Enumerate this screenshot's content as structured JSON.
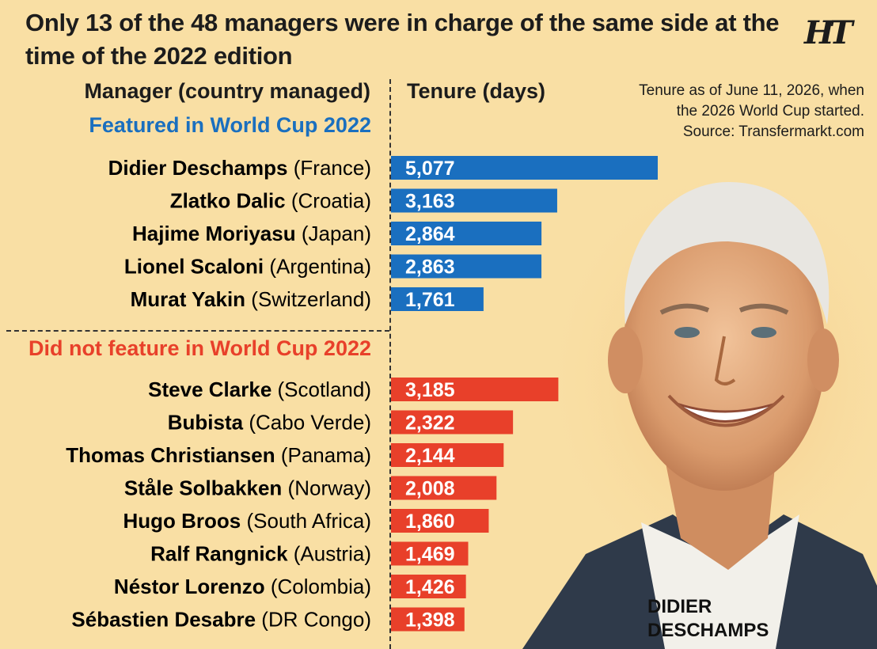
{
  "header": {
    "title": "Only 13 of the 48 managers were in charge of the same side at the time of the 2022 edition",
    "logo": "HT"
  },
  "columns": {
    "manager": "Manager (country managed)",
    "tenure": "Tenure (days)"
  },
  "note": {
    "line1": "Tenure as of June 11, 2026, when",
    "line2": "the 2026 World Cup started.",
    "source": "Source: Transfermarkt.com"
  },
  "photo": {
    "caption_line1": "DIDIER",
    "caption_line2": "DESCHAMPS"
  },
  "colors": {
    "background": "#f9dfa4",
    "featured": "#1a6fbf",
    "not_featured": "#e8402a"
  },
  "chart_data": {
    "type": "bar",
    "orientation": "horizontal",
    "xlim": [
      0,
      5077
    ],
    "grid": false,
    "show_values": true,
    "groups": [
      {
        "name": "Featured in World Cup 2022",
        "color": "#1a6fbf",
        "items": [
          {
            "manager": "Didier Deschamps",
            "country": "(France)",
            "value": 5077,
            "label": "5,077"
          },
          {
            "manager": "Zlatko Dalic",
            "country": "(Croatia)",
            "value": 3163,
            "label": "3,163"
          },
          {
            "manager": "Hajime Moriyasu",
            "country": "(Japan)",
            "value": 2864,
            "label": "2,864"
          },
          {
            "manager": "Lionel Scaloni",
            "country": "(Argentina)",
            "value": 2863,
            "label": "2,863"
          },
          {
            "manager": "Murat Yakin",
            "country": "(Switzerland)",
            "value": 1761,
            "label": "1,761"
          }
        ]
      },
      {
        "name": "Did not feature in World Cup 2022",
        "color": "#e8402a",
        "items": [
          {
            "manager": "Steve Clarke",
            "country": "(Scotland)",
            "value": 3185,
            "label": "3,185"
          },
          {
            "manager": "Bubista",
            "country": "(Cabo Verde)",
            "value": 2322,
            "label": "2,322"
          },
          {
            "manager": "Thomas Christiansen",
            "country": "(Panama)",
            "value": 2144,
            "label": "2,144"
          },
          {
            "manager": "Ståle Solbakken",
            "country": "(Norway)",
            "value": 2008,
            "label": "2,008"
          },
          {
            "manager": "Hugo Broos",
            "country": "(South Africa)",
            "value": 1860,
            "label": "1,860"
          },
          {
            "manager": "Ralf Rangnick",
            "country": "(Austria)",
            "value": 1469,
            "label": "1,469"
          },
          {
            "manager": "Néstor Lorenzo",
            "country": "(Colombia)",
            "value": 1426,
            "label": "1,426"
          },
          {
            "manager": "Sébastien Desabre",
            "country": "(DR Congo)",
            "value": 1398,
            "label": "1,398"
          }
        ]
      }
    ]
  }
}
